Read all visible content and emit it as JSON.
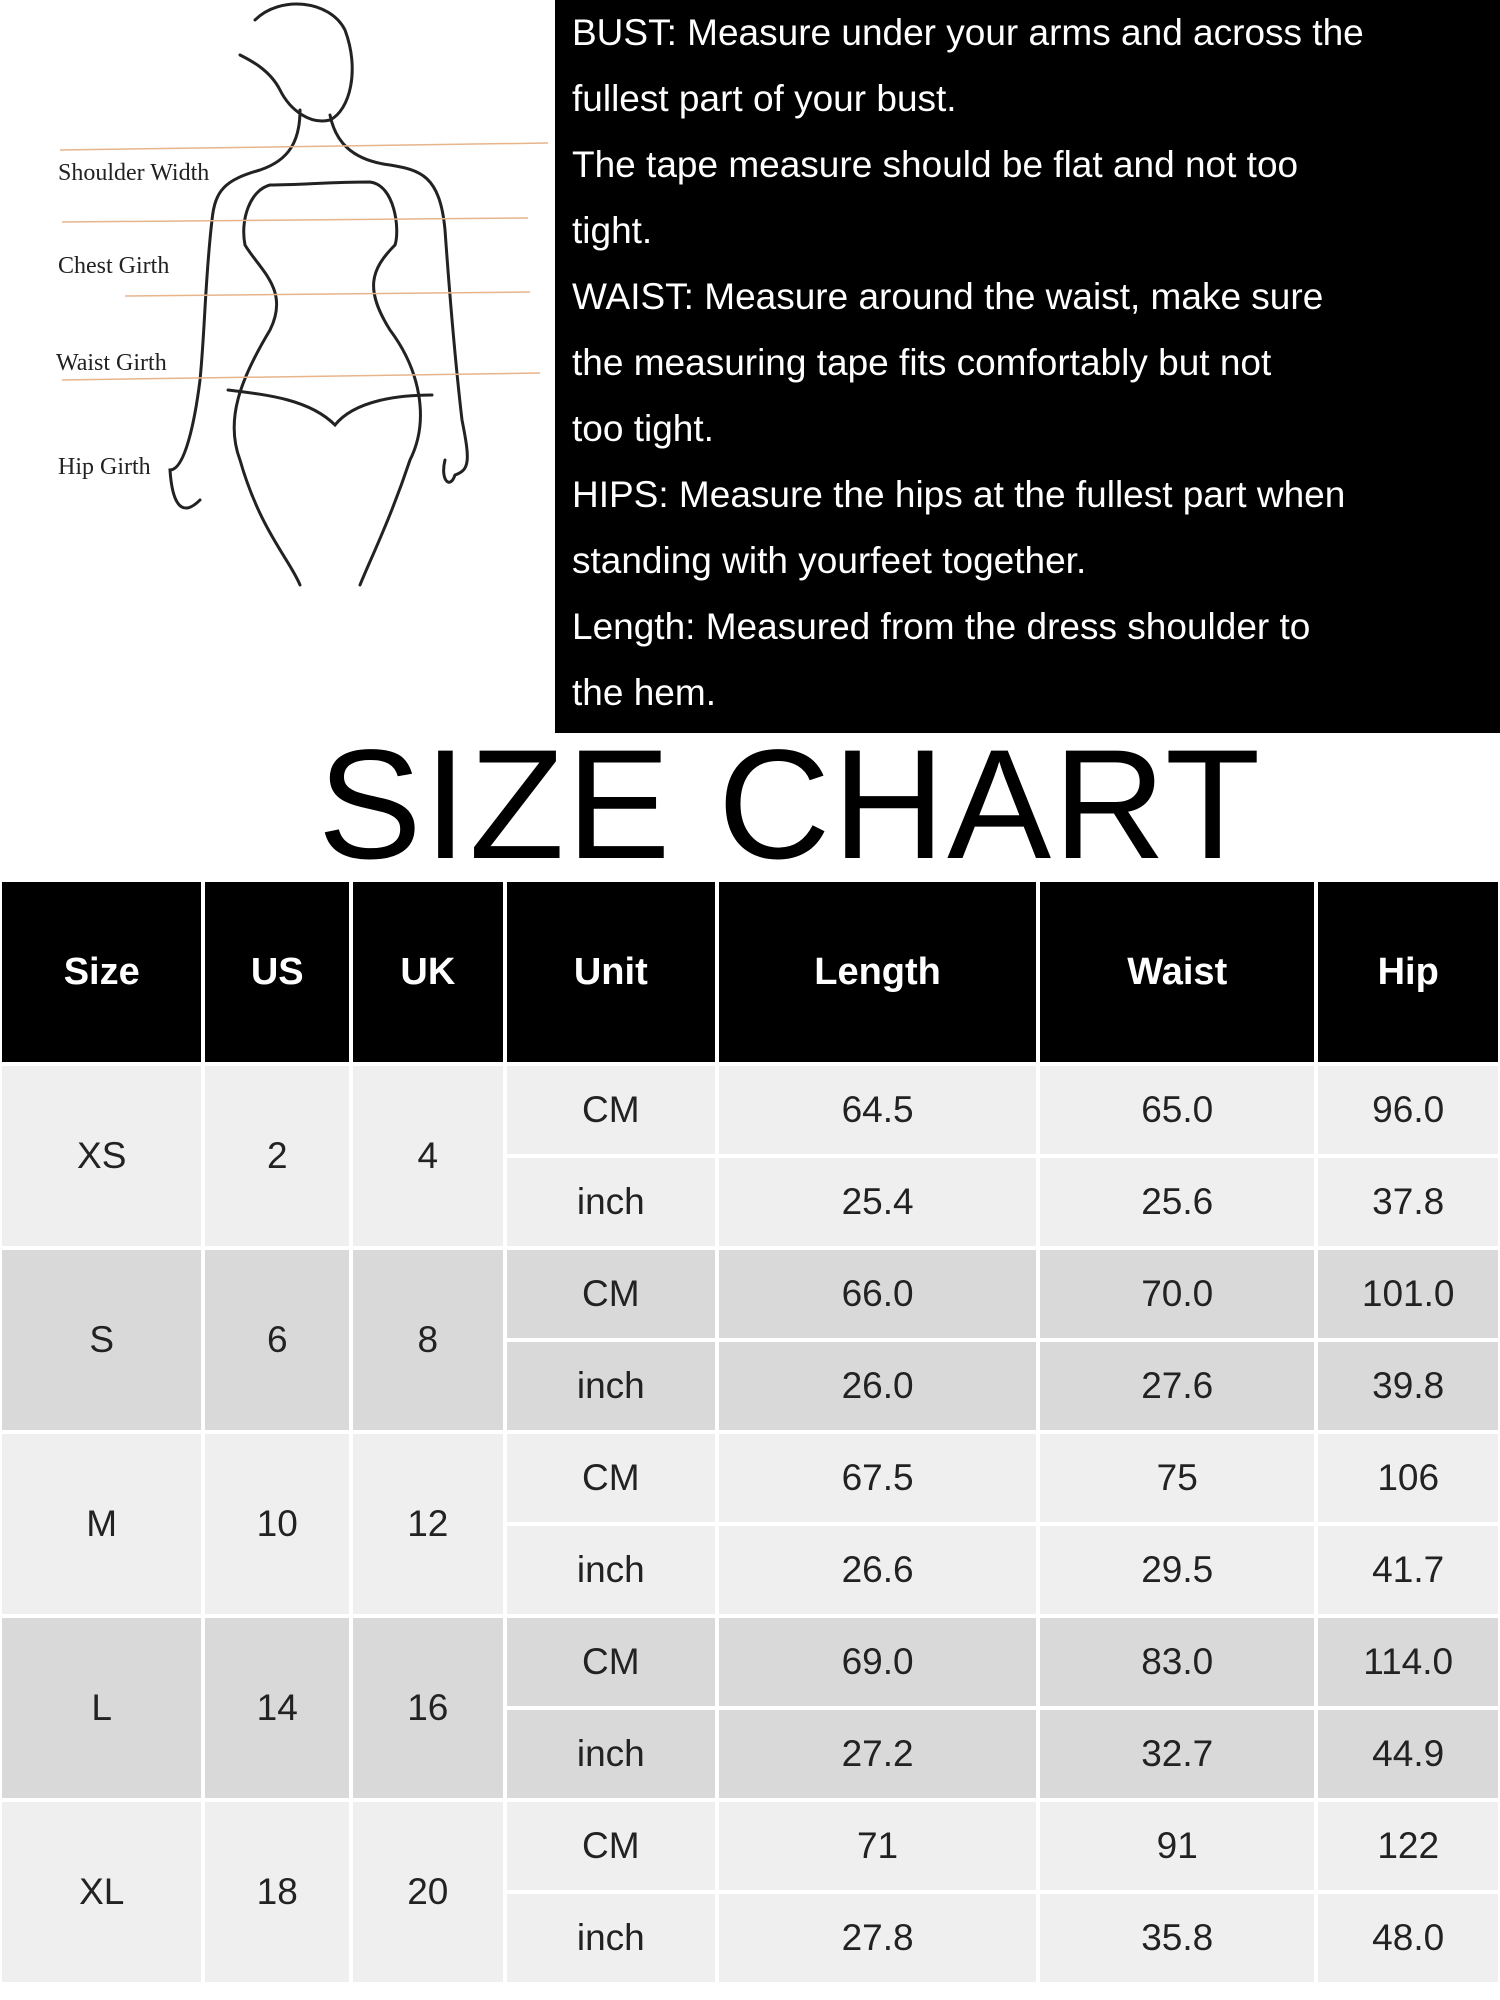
{
  "figure": {
    "labels": [
      "Shoulder Width",
      "Chest Girth",
      "Waist Girth",
      "Hip Girth"
    ]
  },
  "guide": {
    "lines": [
      "BUST: Measure under your arms and across the",
      "fullest part of your bust.",
      "The tape measure should be flat and not too",
      "tight.",
      "WAIST: Measure around the waist, make sure",
      "the measuring tape fits comfortably but not",
      "too tight.",
      "HIPS: Measure the hips at the fullest part when",
      "standing with yourfeet together.",
      "Length: Measured from the dress shoulder to",
      "the hem."
    ]
  },
  "title": "SIZE CHART",
  "colors": {
    "header_bg": "#000000",
    "row_light": "#efefef",
    "row_dark": "#d9d9d9",
    "guide_line": "#e8b48a"
  },
  "table": {
    "headers": [
      "Size",
      "US",
      "UK",
      "Unit",
      "Length",
      "Waist",
      "Hip"
    ],
    "rows": [
      {
        "size": "XS",
        "us": "2",
        "uk": "4",
        "cm": {
          "unit": "CM",
          "length": "64.5",
          "waist": "65.0",
          "hip": "96.0"
        },
        "inch": {
          "unit": "inch",
          "length": "25.4",
          "waist": "25.6",
          "hip": "37.8"
        }
      },
      {
        "size": "S",
        "us": "6",
        "uk": "8",
        "cm": {
          "unit": "CM",
          "length": "66.0",
          "waist": "70.0",
          "hip": "101.0"
        },
        "inch": {
          "unit": "inch",
          "length": "26.0",
          "waist": "27.6",
          "hip": "39.8"
        }
      },
      {
        "size": "M",
        "us": "10",
        "uk": "12",
        "cm": {
          "unit": "CM",
          "length": "67.5",
          "waist": "75",
          "hip": "106"
        },
        "inch": {
          "unit": "inch",
          "length": "26.6",
          "waist": "29.5",
          "hip": "41.7"
        }
      },
      {
        "size": "L",
        "us": "14",
        "uk": "16",
        "cm": {
          "unit": "CM",
          "length": "69.0",
          "waist": "83.0",
          "hip": "114.0"
        },
        "inch": {
          "unit": "inch",
          "length": "27.2",
          "waist": "32.7",
          "hip": "44.9"
        }
      },
      {
        "size": "XL",
        "us": "18",
        "uk": "20",
        "cm": {
          "unit": "CM",
          "length": "71",
          "waist": "91",
          "hip": "122"
        },
        "inch": {
          "unit": "inch",
          "length": "27.8",
          "waist": "35.8",
          "hip": "48.0"
        }
      }
    ]
  }
}
